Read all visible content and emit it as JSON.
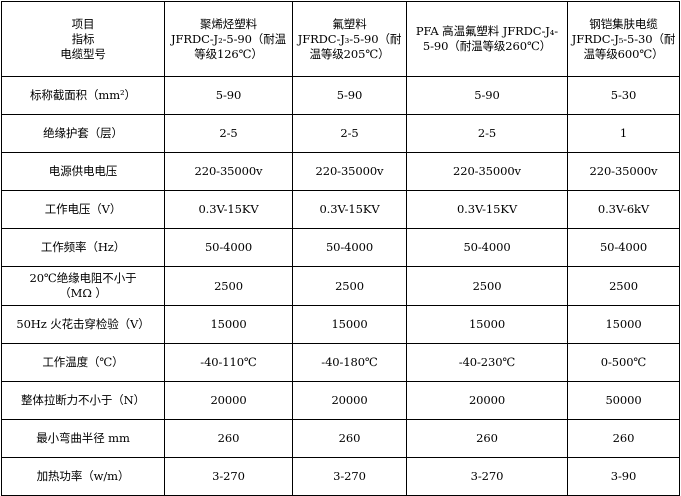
{
  "header": {
    "corner": [
      "项目",
      "指标",
      "电缆型号"
    ],
    "columns": [
      [
        "聚烯烃塑料",
        "JFRDC-J₂-5-90（耐温",
        "等级126℃）"
      ],
      [
        "氟塑料",
        "JFRDC-J₃-5-90（耐",
        "温等级205℃）"
      ],
      [
        "PFA 高温氟塑料 JFRDC-J₄-",
        "5-90（耐温等级260℃）"
      ],
      [
        "钢铠集肤电缆",
        "JFRDC-J₅-5-30（耐",
        "温等级600℃）"
      ]
    ]
  },
  "rows": [
    {
      "label": [
        "标称截面积（mm²）"
      ],
      "values": [
        "5-90",
        "5-90",
        "5-90",
        "5-30"
      ]
    },
    {
      "label": [
        "绝缘护套（层）"
      ],
      "values": [
        "2-5",
        "2-5",
        "2-5",
        "1"
      ]
    },
    {
      "label": [
        "电源供电电压"
      ],
      "values": [
        "220-35000v",
        "220-35000v",
        "220-35000v",
        "220-35000v"
      ]
    },
    {
      "label": [
        "工作电压（V）"
      ],
      "values": [
        "0.3V-15KV",
        "0.3V-15KV",
        "0.3V-15KV",
        "0.3V-6kV"
      ]
    },
    {
      "label": [
        "工作频率（Hz）"
      ],
      "values": [
        "50-4000",
        "50-4000",
        "50-4000",
        "50-4000"
      ]
    },
    {
      "label": [
        "20℃绝缘电阻不小于",
        "（MΩ  ）"
      ],
      "values": [
        "2500",
        "2500",
        "2500",
        "2500"
      ]
    },
    {
      "label": [
        "50Hz 火花击穿检验（V）"
      ],
      "values": [
        "15000",
        "15000",
        "15000",
        "15000"
      ]
    },
    {
      "label": [
        "工作温度（℃）"
      ],
      "values": [
        "-40-110℃",
        "-40-180℃",
        "-40-230℃",
        "0-500℃"
      ]
    },
    {
      "label": [
        "整体拉断力不小于（N）"
      ],
      "values": [
        "20000",
        "20000",
        "20000",
        "50000"
      ]
    },
    {
      "label": [
        "最小弯曲半径 mm"
      ],
      "values": [
        "260",
        "260",
        "260",
        "260"
      ]
    },
    {
      "label": [
        "加热功率（w/m）"
      ],
      "values": [
        "3-270",
        "3-270",
        "3-270",
        "3-90"
      ]
    }
  ]
}
